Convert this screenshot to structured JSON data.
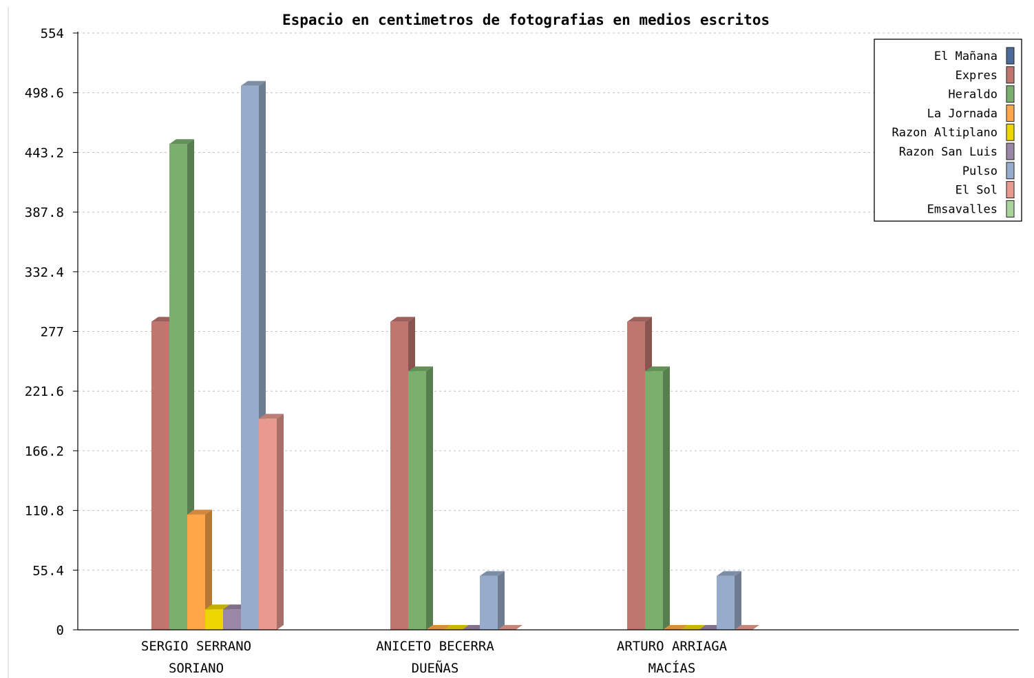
{
  "chart_data": {
    "type": "bar",
    "title": "Espacio en centimetros de fotografias en medios escritos",
    "xlabel": "",
    "ylabel": "",
    "ylim": [
      0,
      554
    ],
    "yticks": [
      "0",
      "55.4",
      "110.8",
      "166.2",
      "221.6",
      "277",
      "332.4",
      "387.8",
      "443.2",
      "498.6",
      "554"
    ],
    "grid": true,
    "legend_position": "top-right",
    "categories": [
      [
        "SERGIO SERRANO",
        "SORIANO"
      ],
      [
        "ANICETO BECERRA",
        "DUEÑAS"
      ],
      [
        "ARTURO ARRIAGA",
        "MACÍAS"
      ]
    ],
    "series": [
      {
        "name": "El Mañana",
        "color": "#4c6a9a",
        "values": [
          0,
          0,
          0
        ]
      },
      {
        "name": "Expres",
        "color": "#c0766f",
        "values": [
          286,
          286,
          286
        ]
      },
      {
        "name": "Heraldo",
        "color": "#7aaf6e",
        "values": [
          451,
          240,
          240
        ]
      },
      {
        "name": "La Jornada",
        "color": "#ffa64a",
        "values": [
          107,
          0,
          0
        ]
      },
      {
        "name": "Razon Altiplano",
        "color": "#eed600",
        "values": [
          19,
          0,
          0
        ]
      },
      {
        "name": "Razon San Luis",
        "color": "#9a86a6",
        "values": [
          19,
          0,
          0
        ]
      },
      {
        "name": "Pulso",
        "color": "#97acca",
        "values": [
          505,
          50,
          50
        ]
      },
      {
        "name": "El Sol",
        "color": "#e89a90",
        "values": [
          196,
          0,
          0
        ]
      },
      {
        "name": "Emsavalles",
        "color": "#a9d49c",
        "values": [
          0,
          0,
          0
        ]
      }
    ]
  }
}
